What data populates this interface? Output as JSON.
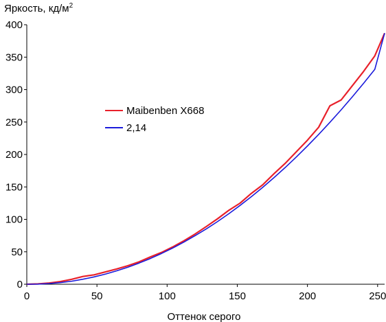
{
  "chart_data": {
    "type": "line",
    "title": "",
    "xlabel": "Оттенок серого",
    "ylabel": "Яркость, кд/м",
    "ylabel_superscript": "2",
    "xlim": [
      0,
      255
    ],
    "ylim": [
      0,
      400
    ],
    "x_ticks": [
      "0",
      "50",
      "100",
      "150",
      "200",
      "250"
    ],
    "y_ticks": [
      "0",
      "50",
      "100",
      "150",
      "200",
      "250",
      "300",
      "350",
      "400"
    ],
    "grid": false,
    "legend_position": "center-left",
    "series": [
      {
        "name": "Maibenben X668",
        "color": "#e8202a",
        "x": [
          0,
          8,
          16,
          24,
          32,
          40,
          48,
          56,
          64,
          72,
          80,
          88,
          96,
          104,
          112,
          120,
          128,
          136,
          144,
          152,
          160,
          168,
          176,
          184,
          192,
          200,
          208,
          216,
          224,
          232,
          240,
          248,
          255
        ],
        "y": [
          0,
          0.5,
          1.9,
          4.2,
          7.6,
          12.0,
          14.5,
          19.0,
          23.5,
          28.5,
          34.5,
          42.0,
          49.0,
          57.5,
          67.0,
          77.5,
          89.0,
          101.0,
          114.0,
          125.0,
          140.0,
          153.0,
          170.0,
          186.0,
          204.0,
          222.0,
          242.0,
          275.0,
          284.0,
          306.0,
          328.0,
          352.0,
          387.0
        ]
      },
      {
        "name": "2,14",
        "color": "#1a1adb",
        "x": [
          0,
          8,
          16,
          24,
          32,
          40,
          48,
          56,
          64,
          72,
          80,
          88,
          96,
          104,
          112,
          120,
          128,
          136,
          144,
          152,
          160,
          168,
          176,
          184,
          192,
          200,
          208,
          216,
          224,
          232,
          240,
          248,
          255
        ],
        "y": [
          0,
          0.24,
          1.06,
          2.54,
          4.65,
          7.7,
          11.3,
          15.6,
          20.6,
          26.2,
          32.6,
          39.6,
          47.4,
          55.8,
          65.0,
          74.9,
          85.4,
          96.7,
          108.7,
          121.5,
          134.9,
          149.1,
          164.0,
          179.6,
          196.0,
          213.1,
          230.9,
          249.5,
          268.8,
          288.9,
          309.7,
          331.2,
          387.0
        ]
      }
    ]
  }
}
